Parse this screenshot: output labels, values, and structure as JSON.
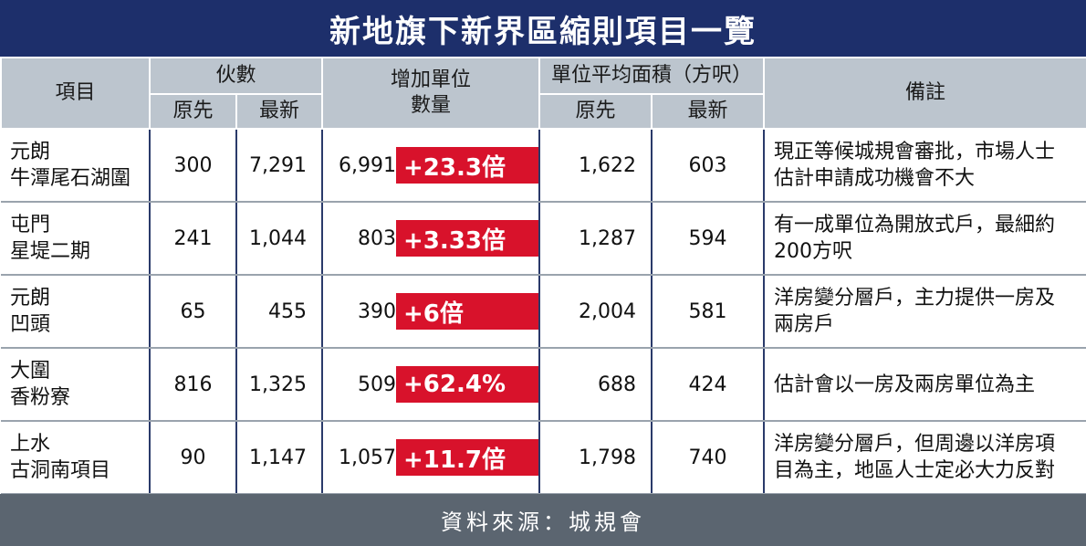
{
  "title": "新地旗下新界區縮則項目一覽",
  "headers": {
    "project": "項目",
    "units": "伙數",
    "units_orig": "原先",
    "units_new": "最新",
    "increase_line1": "增加單位",
    "increase_line2": "數量",
    "area": "單位平均面積（方呎）",
    "area_orig": "原先",
    "area_new": "最新",
    "remarks": "備註"
  },
  "rows": [
    {
      "loc": "元朗",
      "name": "牛潭尾石湖圍",
      "units_orig": "300",
      "units_new": "7,291",
      "increase": "6,991",
      "growth": "+23.3倍",
      "area_orig": "1,622",
      "area_new": "603",
      "remark_1": "現正等候城規會審批，市場人士",
      "remark_2": "估計申請成功機會不大"
    },
    {
      "loc": "屯門",
      "name": "星堤二期",
      "units_orig": "241",
      "units_new": "1,044",
      "increase": "803",
      "growth": "+3.33倍",
      "area_orig": "1,287",
      "area_new": "594",
      "remark_1": "有一成單位為開放式戶，最細約",
      "remark_2": "200方呎"
    },
    {
      "loc": "元朗",
      "name": "凹頭",
      "units_orig": "65",
      "units_new": "455",
      "increase": "390",
      "growth": "+6倍",
      "area_orig": "2,004",
      "area_new": "581",
      "remark_1": "洋房變分層戶，主力提供一房及",
      "remark_2": "兩房戶"
    },
    {
      "loc": "大圍",
      "name": "香粉寮",
      "units_orig": "816",
      "units_new": "1,325",
      "increase": "509",
      "growth": "+62.4%",
      "area_orig": "688",
      "area_new": "424",
      "remark_1": "估計會以一房及兩房單位為主",
      "remark_2": ""
    },
    {
      "loc": "上水",
      "name": "古洞南項目",
      "units_orig": "90",
      "units_new": "1,147",
      "increase": "1,057",
      "growth": "+11.7倍",
      "area_orig": "1,798",
      "area_new": "740",
      "remark_1": "洋房變分層戶，但周邊以洋房項",
      "remark_2": "目為主，地區人士定必大力反對"
    }
  ],
  "source": "資料來源：城規會",
  "colors": {
    "title_bg": "#1d2f6b",
    "header_bg": "#bcc5ce",
    "badge": "#d8122b",
    "footer_bg": "#5b6570"
  }
}
